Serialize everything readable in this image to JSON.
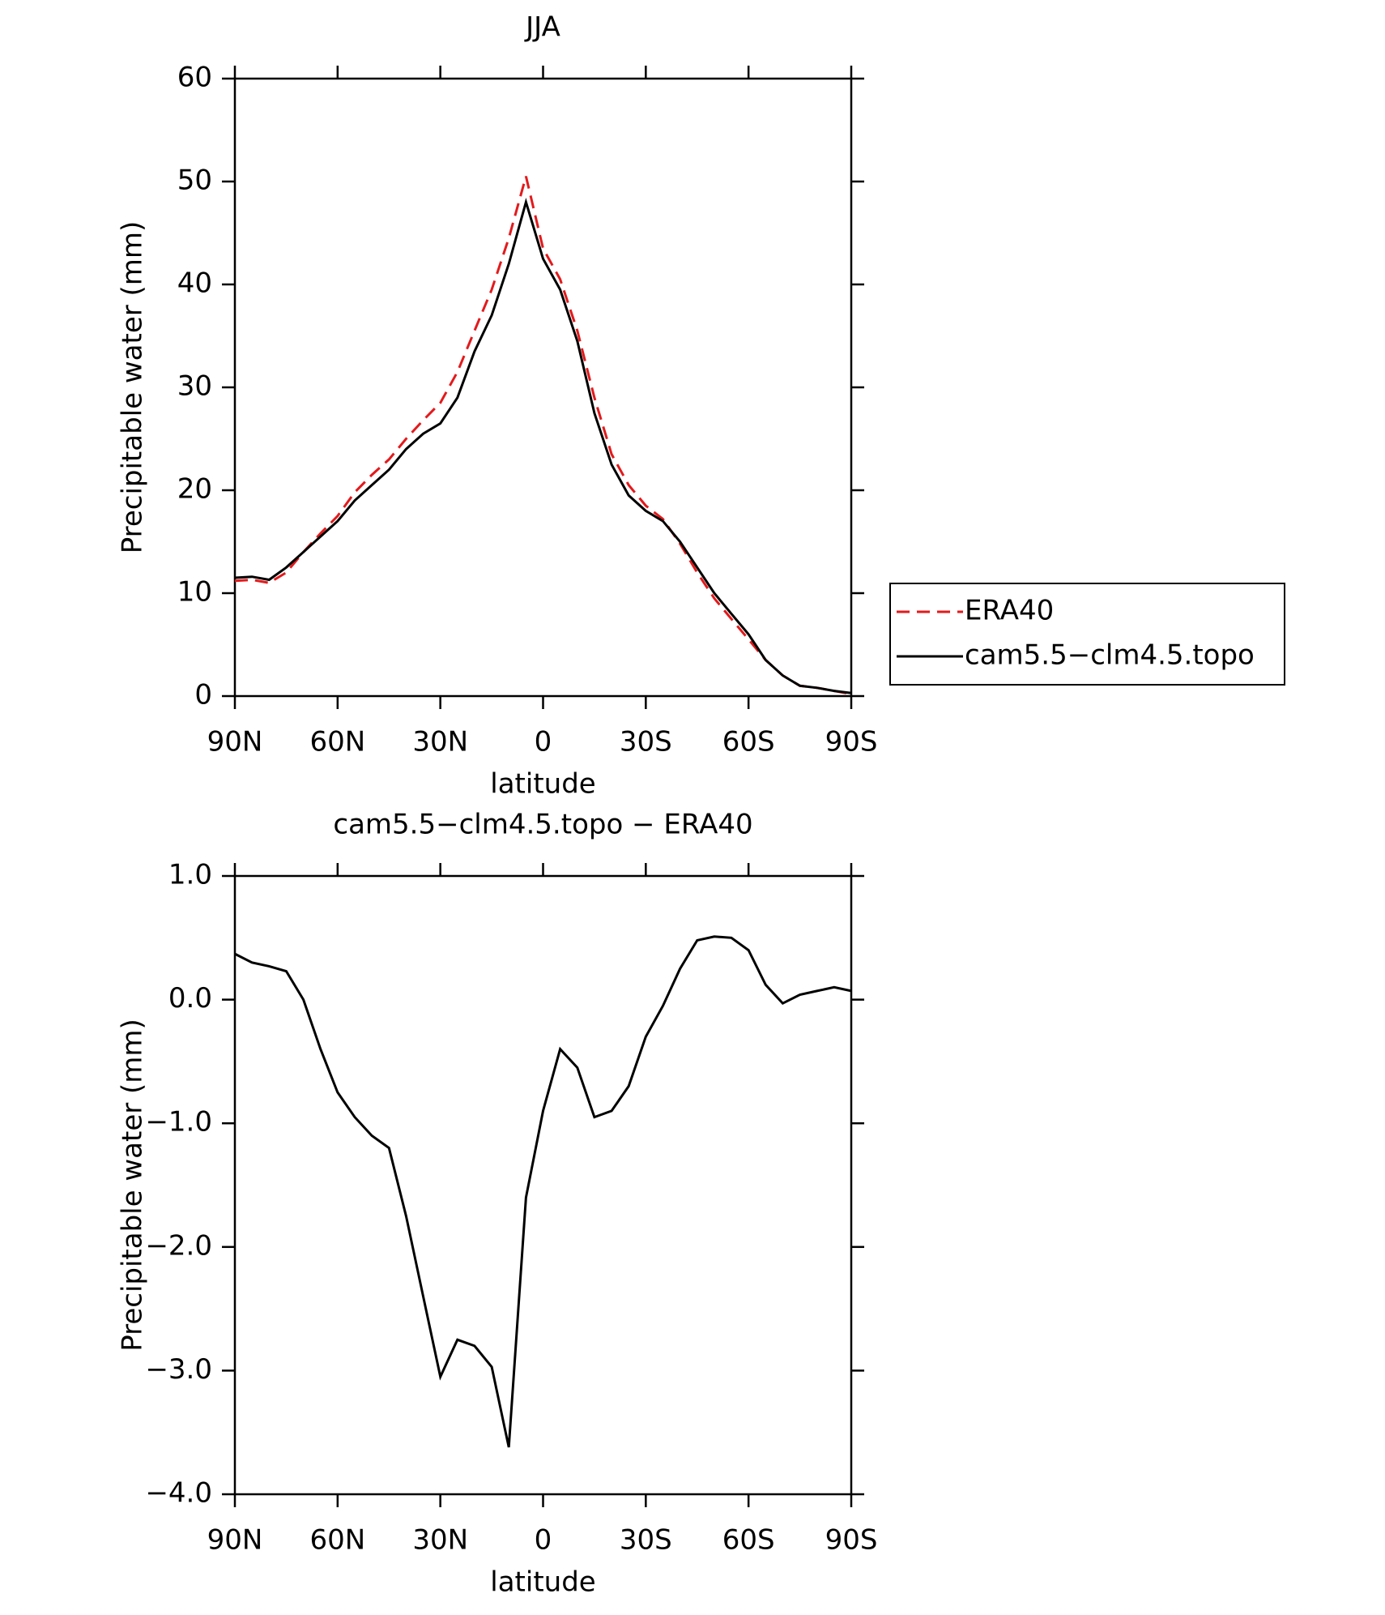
{
  "chart_data": [
    {
      "type": "line",
      "title": "JJA",
      "x_label": "latitude",
      "y_label": "Precipitable water (mm)",
      "x": [
        90,
        85,
        80,
        75,
        70,
        65,
        60,
        55,
        50,
        45,
        40,
        35,
        30,
        25,
        20,
        15,
        10,
        5,
        0,
        -5,
        -10,
        -15,
        -20,
        -25,
        -30,
        -35,
        -40,
        -45,
        -50,
        -55,
        -60,
        -65,
        -70,
        -75,
        -80,
        -85,
        -90
      ],
      "xlim": [
        90,
        -90
      ],
      "xticks": [
        {
          "value": 90,
          "label": "90N"
        },
        {
          "value": 60,
          "label": "60N"
        },
        {
          "value": 30,
          "label": "30N"
        },
        0,
        {
          "value": -30,
          "label": "30S"
        },
        {
          "value": -60,
          "label": "60S"
        },
        {
          "value": -90,
          "label": "90S"
        }
      ],
      "ylim": [
        0,
        60
      ],
      "yticks": [
        0,
        10,
        20,
        30,
        40,
        50,
        60
      ],
      "legend": "right",
      "series": [
        {
          "name": "ERA40",
          "color": "#e31a1c",
          "line_style": "dashed",
          "values": [
            11.2,
            11.3,
            11.0,
            12.0,
            14.0,
            15.8,
            17.5,
            19.8,
            21.5,
            23.0,
            25.0,
            26.8,
            28.5,
            31.5,
            35.5,
            39.5,
            44.5,
            50.5,
            43.5,
            40.5,
            35.5,
            29.0,
            23.5,
            20.5,
            18.5,
            17.2,
            14.8,
            12.0,
            9.5,
            7.5,
            5.5,
            3.5,
            2.0,
            1.0,
            0.8,
            0.5,
            0.2
          ]
        },
        {
          "name": "cam5.5−clm4.5.topo",
          "color": "#000000",
          "line_style": "solid",
          "values": [
            11.5,
            11.6,
            11.3,
            12.5,
            14.0,
            15.5,
            17.0,
            19.0,
            20.5,
            22.0,
            24.0,
            25.5,
            26.5,
            29.0,
            33.5,
            37.0,
            42.0,
            48.0,
            42.5,
            39.5,
            34.5,
            27.5,
            22.5,
            19.5,
            18.0,
            17.0,
            15.0,
            12.5,
            10.0,
            8.0,
            6.0,
            3.5,
            2.0,
            1.0,
            0.8,
            0.5,
            0.3
          ]
        }
      ]
    },
    {
      "type": "line",
      "title": "cam5.5−clm4.5.topo − ERA40",
      "x_label": "latitude",
      "y_label": "Precipitable water (mm)",
      "x": [
        90,
        85,
        80,
        75,
        70,
        65,
        60,
        55,
        50,
        45,
        40,
        35,
        30,
        25,
        20,
        15,
        10,
        5,
        0,
        -5,
        -10,
        -15,
        -20,
        -25,
        -30,
        -35,
        -40,
        -45,
        -50,
        -55,
        -60,
        -65,
        -70,
        -75,
        -80,
        -85,
        -90
      ],
      "xlim": [
        90,
        -90
      ],
      "xticks": [
        {
          "value": 90,
          "label": "90N"
        },
        {
          "value": 60,
          "label": "60N"
        },
        {
          "value": 30,
          "label": "30N"
        },
        0,
        {
          "value": -30,
          "label": "30S"
        },
        {
          "value": -60,
          "label": "60S"
        },
        {
          "value": -90,
          "label": "90S"
        }
      ],
      "ylim": [
        -4,
        1
      ],
      "yticks": [
        {
          "value": -4,
          "label": "−4.0"
        },
        {
          "value": -3,
          "label": "−3.0"
        },
        {
          "value": -2,
          "label": "−2.0"
        },
        {
          "value": -1,
          "label": "−1.0"
        },
        {
          "value": 0,
          "label": "0.0"
        },
        {
          "value": 1,
          "label": "1.0"
        }
      ],
      "color": "#000000",
      "values": [
        0.37,
        0.3,
        0.27,
        0.23,
        0.0,
        -0.4,
        -0.75,
        -0.95,
        -1.1,
        -1.2,
        -1.75,
        -2.4,
        -3.05,
        -2.75,
        -2.8,
        -2.97,
        -3.62,
        -1.6,
        -0.9,
        -0.4,
        -0.55,
        -0.95,
        -0.9,
        -0.7,
        -0.3,
        -0.05,
        0.25,
        0.48,
        0.51,
        0.5,
        0.4,
        0.12,
        -0.03,
        0.04,
        0.07,
        0.1,
        0.07
      ]
    }
  ]
}
